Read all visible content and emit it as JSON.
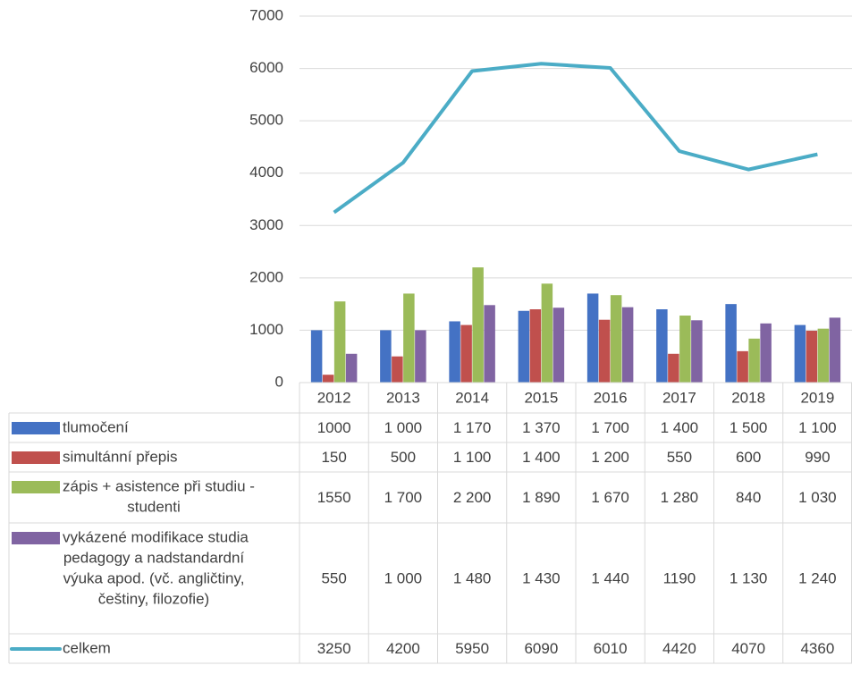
{
  "chart_data": {
    "type": "bar",
    "categories": [
      "2012",
      "2013",
      "2014",
      "2015",
      "2016",
      "2017",
      "2018",
      "2019"
    ],
    "y_ticks": [
      "0",
      "1000",
      "2000",
      "3000",
      "4000",
      "5000",
      "6000",
      "7000"
    ],
    "ylim": [
      0,
      7000
    ],
    "grid": true,
    "legend": "data-table",
    "series": [
      {
        "name_lines": [
          "tlumočení"
        ],
        "kind": "bar",
        "color": "#4472C4",
        "values": [
          1000,
          1000,
          1170,
          1370,
          1700,
          1400,
          1500,
          1100
        ],
        "labels": [
          "1000",
          "1 000",
          "1 170",
          "1 370",
          "1 700",
          "1 400",
          "1 500",
          "1 100"
        ]
      },
      {
        "name_lines": [
          "simultánní přepis"
        ],
        "kind": "bar",
        "color": "#C0504D",
        "values": [
          150,
          500,
          1100,
          1400,
          1200,
          550,
          600,
          990
        ],
        "labels": [
          "150",
          "500",
          "1 100",
          "1 400",
          "1 200",
          "550",
          "600",
          "990"
        ]
      },
      {
        "name_lines": [
          "zápis + asistence při studiu -",
          "studenti"
        ],
        "kind": "bar",
        "color": "#9BBB59",
        "values": [
          1550,
          1700,
          2200,
          1890,
          1670,
          1280,
          840,
          1030
        ],
        "labels": [
          "1550",
          "1 700",
          "2 200",
          "1 890",
          "1 670",
          "1 280",
          "840",
          "1 030"
        ]
      },
      {
        "name_lines": [
          "vykázené modifikace studia",
          "pedagogy a nadstandardní",
          "výuka apod. (vč. angličtiny,",
          "češtiny, filozofie)"
        ],
        "kind": "bar",
        "color": "#8064A2",
        "values": [
          550,
          1000,
          1480,
          1430,
          1440,
          1190,
          1130,
          1240
        ],
        "labels": [
          "550",
          "1 000",
          "1 480",
          "1 430",
          "1 440",
          "1190",
          "1 130",
          "1 240"
        ]
      },
      {
        "name_lines": [
          "celkem"
        ],
        "kind": "line",
        "color": "#4BACC6",
        "values": [
          3250,
          4200,
          5950,
          6090,
          6010,
          4420,
          4070,
          4360
        ],
        "labels": [
          "3250",
          "4200",
          "5950",
          "6090",
          "6010",
          "4420",
          "4070",
          "4360"
        ]
      }
    ]
  }
}
